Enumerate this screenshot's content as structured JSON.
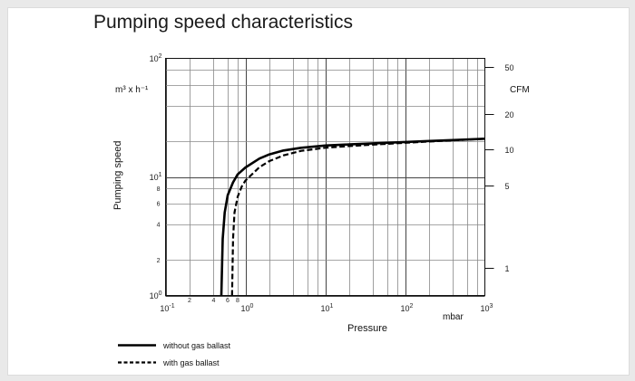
{
  "chart_data": {
    "type": "line",
    "title": "Pumping speed characteristics",
    "xlabel": "Pressure",
    "x_unit": "mbar",
    "ylabel": "Pumping speed",
    "y_unit": "m³ x h⁻¹",
    "y2_unit": "CFM",
    "x_scale": "log",
    "y_scale": "log",
    "xlim": [
      0.1,
      1000
    ],
    "ylim": [
      1,
      100
    ],
    "x_major_ticks": [
      {
        "base": "10",
        "exp": "-1",
        "value": 0.1
      },
      {
        "base": "10",
        "exp": "0",
        "value": 1
      },
      {
        "base": "10",
        "exp": "1",
        "value": 10
      },
      {
        "base": "10",
        "exp": "2",
        "value": 100
      },
      {
        "base": "10",
        "exp": "3",
        "value": 1000
      }
    ],
    "x_minor_labels": [
      {
        "label": "2",
        "value": 0.2
      },
      {
        "label": "4",
        "value": 0.4
      },
      {
        "label": "6",
        "value": 0.6
      },
      {
        "label": "8",
        "value": 0.8
      }
    ],
    "y_major_ticks": [
      {
        "base": "10",
        "exp": "0",
        "value": 1
      },
      {
        "base": "10",
        "exp": "1",
        "value": 10
      },
      {
        "base": "10",
        "exp": "2",
        "value": 100
      }
    ],
    "y_minor_labels": [
      {
        "label": "2",
        "value": 2
      },
      {
        "label": "4",
        "value": 4
      },
      {
        "label": "6",
        "value": 6
      },
      {
        "label": "8",
        "value": 8
      }
    ],
    "y2_ticks": [
      {
        "label": "50",
        "value": 85
      },
      {
        "label": "20",
        "value": 34
      },
      {
        "label": "10",
        "value": 17
      },
      {
        "label": "5",
        "value": 8.5
      },
      {
        "label": "1",
        "value": 1.7
      }
    ],
    "grid": true,
    "legend_position": "bottom-left",
    "series": [
      {
        "name": "without gas ballast",
        "style": "solid",
        "color": "#000000",
        "x": [
          0.5,
          0.52,
          0.55,
          0.6,
          0.7,
          0.8,
          1.0,
          1.5,
          2,
          3,
          5,
          10,
          20,
          50,
          100,
          200,
          500,
          1000
        ],
        "y": [
          1,
          3,
          5,
          7,
          9,
          10.5,
          12,
          14.3,
          15.5,
          16.7,
          17.6,
          18.4,
          18.8,
          19.3,
          19.7,
          20.1,
          20.6,
          21
        ]
      },
      {
        "name": "with gas ballast",
        "style": "dashed",
        "color": "#000000",
        "x": [
          0.68,
          0.7,
          0.73,
          0.8,
          0.9,
          1.0,
          1.5,
          2,
          3,
          5,
          10,
          20,
          50,
          100,
          200,
          500,
          1000
        ],
        "y": [
          1,
          3,
          5,
          6.8,
          8.3,
          9.3,
          12.1,
          13.6,
          15.2,
          16.6,
          17.6,
          18.2,
          18.9,
          19.4,
          19.9,
          20.5,
          21
        ]
      }
    ]
  }
}
